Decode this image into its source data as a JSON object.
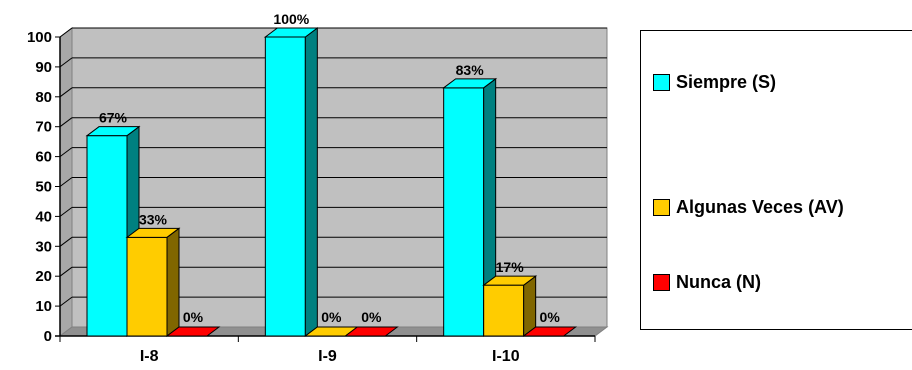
{
  "chart_data": {
    "type": "bar",
    "style": "3d-clustered-column",
    "categories": [
      "I-8",
      "I-9",
      "I-10"
    ],
    "series": [
      {
        "name": "Siempre (S)",
        "values": [
          67,
          100,
          83
        ],
        "labels": [
          "67%",
          "100%",
          "83%"
        ],
        "color": "#00FFFF",
        "side_color": "#008080"
      },
      {
        "name": "Algunas Veces (AV)",
        "values": [
          33,
          0,
          17
        ],
        "labels": [
          "33%",
          "0%",
          "17%"
        ],
        "color": "#FFCC00",
        "side_color": "#806600"
      },
      {
        "name": "Nunca (N)",
        "values": [
          0,
          0,
          0
        ],
        "labels": [
          "0%",
          "0%",
          "0%"
        ],
        "color": "#FF0000",
        "side_color": "#800000"
      }
    ],
    "ylim": [
      0,
      100
    ],
    "yticks": [
      0,
      10,
      20,
      30,
      40,
      50,
      60,
      70,
      80,
      90,
      100
    ],
    "grid": true,
    "wall_color": "#C0C0C0",
    "legend_position": "right",
    "title": "",
    "xlabel": "",
    "ylabel": ""
  }
}
